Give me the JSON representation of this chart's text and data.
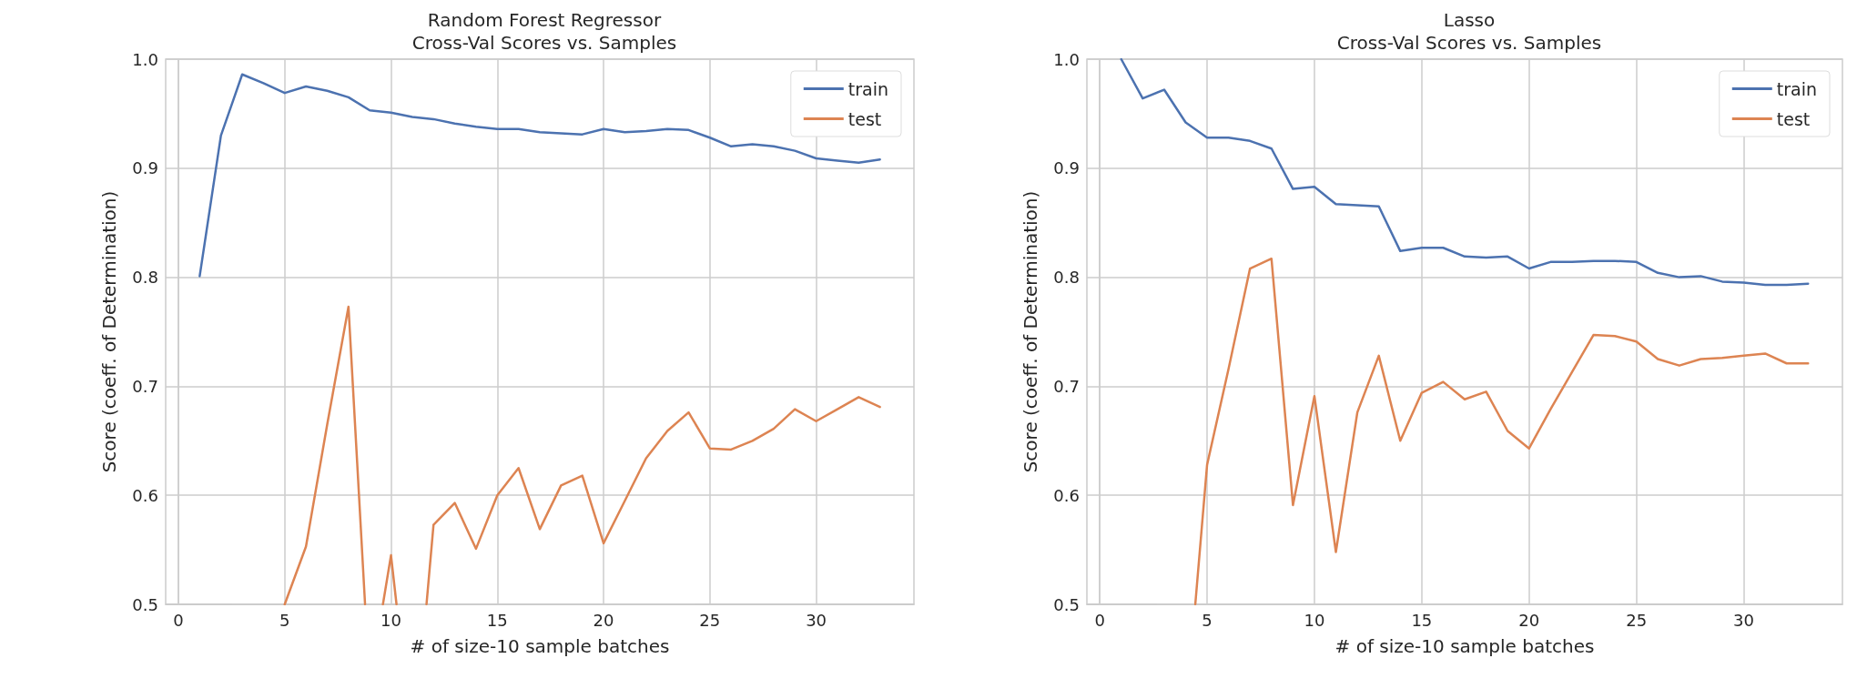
{
  "chart_data": [
    {
      "type": "line",
      "title": "Random Forest Regressor\nCross-Val Scores vs. Samples",
      "xlabel": "# of size-10 sample batches",
      "ylabel": "Score (coeff. of Determination)",
      "x": [
        1,
        2,
        3,
        4,
        5,
        6,
        7,
        8,
        9,
        10,
        11,
        12,
        13,
        14,
        15,
        16,
        17,
        18,
        19,
        20,
        21,
        22,
        23,
        24,
        25,
        26,
        27,
        28,
        29,
        30,
        31,
        32,
        33
      ],
      "series": [
        {
          "name": "train",
          "color": "#4c72b0",
          "values": [
            0.801,
            0.93,
            0.986,
            0.978,
            0.969,
            0.975,
            0.971,
            0.965,
            0.953,
            0.951,
            0.947,
            0.945,
            0.941,
            0.938,
            0.936,
            0.936,
            0.933,
            0.932,
            0.931,
            0.936,
            0.933,
            0.934,
            0.936,
            0.935,
            0.928,
            0.92,
            0.922,
            0.92,
            0.916,
            0.909,
            0.907,
            0.905,
            0.908
          ]
        },
        {
          "name": "test",
          "color": "#dd8452",
          "x": [
            5,
            6,
            7,
            8,
            8.78,
            9,
            9.62,
            10,
            10.26,
            11,
            11.67,
            12,
            13,
            14,
            15,
            16,
            17,
            18,
            19,
            20,
            21,
            22,
            23,
            24,
            25,
            26,
            27,
            28,
            29,
            30,
            31,
            32,
            33
          ],
          "values": [
            0.5,
            0.553,
            0.665,
            0.773,
            0.5,
            null,
            0.5,
            0.545,
            0.5,
            null,
            0.5,
            0.573,
            0.593,
            0.551,
            0.6,
            0.625,
            0.569,
            0.609,
            0.618,
            0.556,
            0.595,
            0.634,
            0.659,
            0.676,
            0.643,
            0.642,
            0.65,
            0.661,
            0.679,
            0.668,
            0.679,
            0.69,
            0.681
          ]
        }
      ],
      "xlim": [
        -0.6,
        34.6
      ],
      "xticks": [
        0,
        5,
        10,
        15,
        20,
        25,
        30
      ],
      "ylim": [
        0.5,
        1.0
      ],
      "yticks": [
        0.5,
        0.6,
        0.7,
        0.8,
        0.9,
        {
          "value": 1,
          "label": "1.0"
        }
      ],
      "grid": true,
      "legend": "top right",
      "marker": "none",
      "line_style": "solid"
    },
    {
      "type": "line",
      "title": "Lasso\nCross-Val Scores vs. Samples",
      "xlabel": "# of size-10 sample batches",
      "ylabel": "Score (coeff. of Determination)",
      "x": [
        1,
        2,
        3,
        4,
        5,
        6,
        7,
        8,
        9,
        10,
        11,
        12,
        13,
        14,
        15,
        16,
        17,
        18,
        19,
        20,
        21,
        22,
        23,
        24,
        25,
        26,
        27,
        28,
        29,
        30,
        31,
        32,
        33
      ],
      "series": [
        {
          "name": "train",
          "color": "#4c72b0",
          "values": [
            1.0,
            0.964,
            0.972,
            0.942,
            0.928,
            0.928,
            0.925,
            0.918,
            0.881,
            0.883,
            0.867,
            0.866,
            0.865,
            0.824,
            0.827,
            0.827,
            0.819,
            0.818,
            0.819,
            0.808,
            0.814,
            0.814,
            0.815,
            0.815,
            0.814,
            0.804,
            0.8,
            0.801,
            0.796,
            0.795,
            0.793,
            0.793,
            0.794
          ]
        },
        {
          "name": "test",
          "color": "#dd8452",
          "x": [
            4.45,
            5,
            6,
            7,
            8,
            9,
            10,
            11,
            12,
            13,
            14,
            15,
            16,
            17,
            18,
            19,
            20,
            21,
            22,
            23,
            24,
            25,
            26,
            27,
            28,
            29,
            30,
            31,
            32,
            33
          ],
          "values": [
            0.5,
            0.628,
            0.716,
            0.808,
            0.817,
            0.591,
            0.691,
            0.548,
            0.676,
            0.728,
            0.65,
            0.694,
            0.704,
            0.688,
            0.695,
            0.659,
            0.643,
            0.679,
            0.713,
            0.747,
            0.746,
            0.741,
            0.725,
            0.719,
            0.725,
            0.726,
            0.728,
            0.73,
            0.721,
            0.721
          ]
        }
      ],
      "xlim": [
        -0.6,
        34.6
      ],
      "xticks": [
        0,
        5,
        10,
        15,
        20,
        25,
        30
      ],
      "ylim": [
        0.5,
        1.0
      ],
      "yticks": [
        0.5,
        0.6,
        0.7,
        0.8,
        0.9,
        {
          "value": 1,
          "label": "1.0"
        }
      ],
      "grid": true,
      "legend": "top right",
      "marker": "none",
      "line_style": "solid"
    }
  ]
}
